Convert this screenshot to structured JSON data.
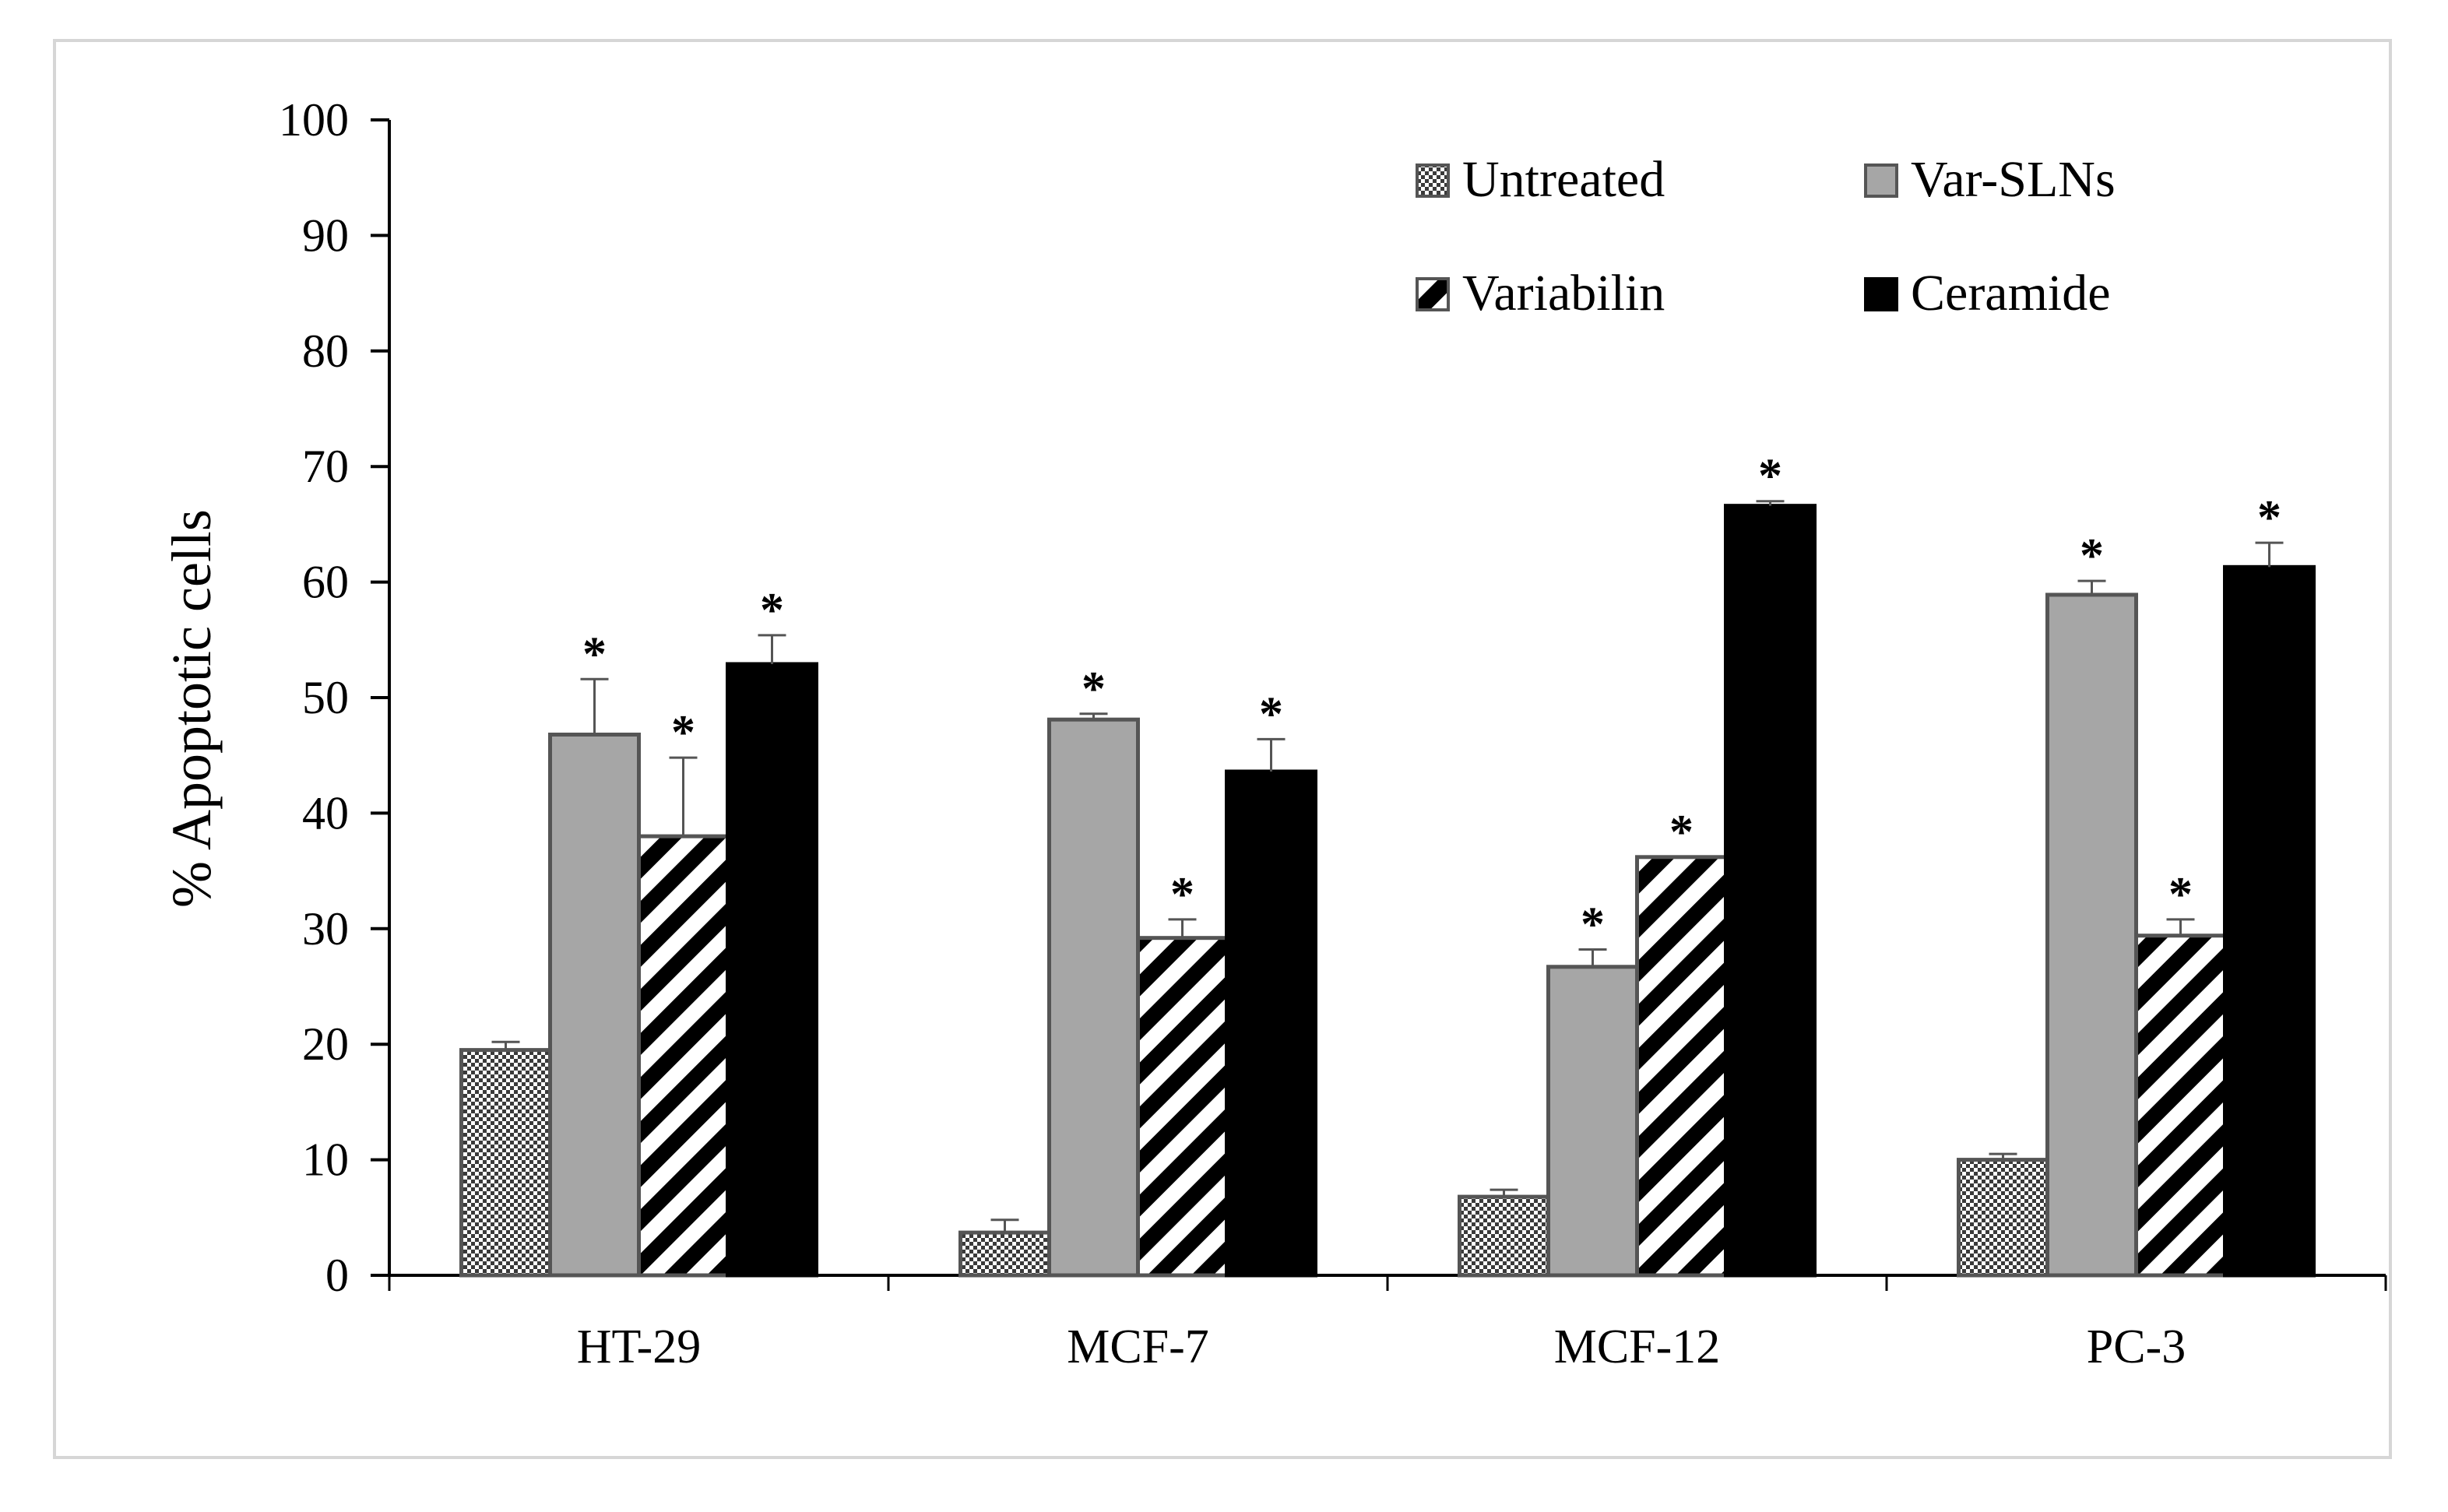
{
  "chart_data": {
    "type": "bar",
    "title": "",
    "xlabel": "",
    "ylabel": "% Apoptotic cells",
    "ylim": [
      0,
      100
    ],
    "yticks": [
      0,
      10,
      20,
      30,
      40,
      50,
      60,
      70,
      80,
      90,
      100
    ],
    "grid": false,
    "legend_position": "top-right",
    "categories": [
      "HT-29",
      "MCF-7",
      "MCF-12",
      "PC-3"
    ],
    "series": [
      {
        "name": "Untreated",
        "pattern": "checker",
        "color": "#ffffff",
        "stroke": "#555555",
        "values": [
          19.5,
          3.7,
          6.8,
          10.0
        ],
        "errors": [
          0.7,
          1.1,
          0.6,
          0.5
        ],
        "significant": [
          false,
          false,
          false,
          false
        ]
      },
      {
        "name": "Var-SLNs",
        "pattern": "solid",
        "color": "#a6a6a6",
        "stroke": "#555555",
        "values": [
          46.8,
          48.1,
          26.7,
          58.9
        ],
        "errors": [
          4.8,
          0.5,
          1.5,
          1.2
        ],
        "significant": [
          true,
          true,
          true,
          true
        ]
      },
      {
        "name": "Variabilin",
        "pattern": "diagonal",
        "color": "#ffffff",
        "stroke": "#555555",
        "values": [
          38.0,
          29.2,
          36.2,
          29.4
        ],
        "errors": [
          6.8,
          1.6,
          0.0,
          1.4
        ],
        "significant": [
          true,
          true,
          true,
          true
        ]
      },
      {
        "name": "Ceramide",
        "pattern": "solid",
        "color": "#000000",
        "stroke": "#000000",
        "values": [
          52.9,
          43.6,
          66.6,
          61.3
        ],
        "errors": [
          2.5,
          2.8,
          0.4,
          2.1
        ],
        "significant": [
          true,
          true,
          true,
          true
        ]
      }
    ],
    "significance_marker": "*"
  }
}
